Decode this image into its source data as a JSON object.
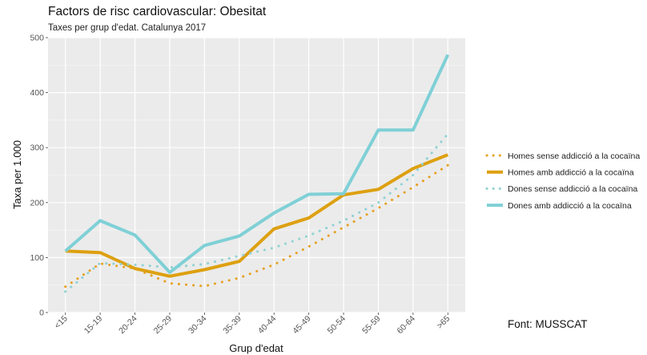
{
  "chart_data": {
    "type": "line",
    "title": "Factors de risc cardiovascular: Obesitat",
    "subtitle": "Taxes per grup d'edat. Catalunya 2017",
    "xlabel": "Grup d'edat",
    "ylabel": "Taxa per 1.000",
    "categories": [
      "<15",
      "15-19",
      "20-24",
      "25-29",
      "30-34",
      "35-39",
      "40-44",
      "45-49",
      "50-54",
      "55-59",
      "60-64",
      ">65"
    ],
    "ylim": [
      0,
      500
    ],
    "yticks": [
      0,
      100,
      200,
      300,
      400,
      500
    ],
    "ytick_labels": [
      "0",
      "100",
      "200",
      "300",
      "400",
      "500"
    ],
    "grid": true,
    "legend_position": "right",
    "series": [
      {
        "name": "Homes sense addicció a la cocaïna",
        "color": "#E6A020",
        "style": "dotted",
        "values": [
          47,
          89,
          80,
          53,
          48,
          63,
          87,
          120,
          155,
          190,
          228,
          268
        ]
      },
      {
        "name": "Homes amb addicció a la cocaïna",
        "color": "#DDA010",
        "style": "solid",
        "values": [
          112,
          109,
          80,
          66,
          78,
          93,
          152,
          172,
          214,
          224,
          262,
          287
        ]
      },
      {
        "name": "Dones sense addicció a la cocaïna",
        "color": "#8FD1D3",
        "style": "dotted",
        "values": [
          38,
          90,
          87,
          82,
          88,
          103,
          118,
          140,
          167,
          200,
          250,
          325
        ]
      },
      {
        "name": "Dones amb addicció a la cocaïna",
        "color": "#7FD0D6",
        "style": "solid",
        "values": [
          112,
          167,
          141,
          73,
          122,
          139,
          181,
          215,
          216,
          332,
          332,
          469
        ]
      }
    ]
  },
  "source": "Font: MUSSCAT"
}
